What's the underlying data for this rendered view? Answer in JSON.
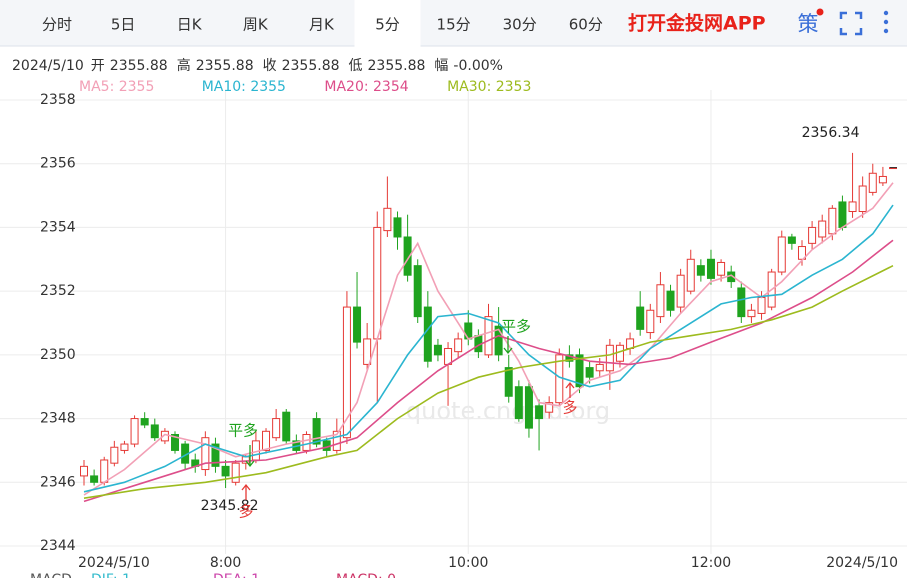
{
  "tabs": [
    "分时",
    "5日",
    "日K",
    "周K",
    "月K",
    "5分",
    "15分",
    "30分",
    "60分"
  ],
  "active_tab": 5,
  "brand": "打开金投网APP",
  "strategy_button": "策",
  "info": {
    "date": "2024/5/10",
    "items": [
      {
        "label": "开",
        "value": "2355.88"
      },
      {
        "label": "高",
        "value": "2355.88"
      },
      {
        "label": "收",
        "value": "2355.88"
      },
      {
        "label": "低",
        "value": "2355.88"
      },
      {
        "label": "幅",
        "value": "-0.00%"
      }
    ]
  },
  "macd_legend": [
    {
      "text": "MACD",
      "color": "#555555"
    },
    {
      "text": "DIF: 1",
      "color": "#33bbcc"
    },
    {
      "text": "DEA: 1",
      "color": "#cc44aa"
    },
    {
      "text": "MACD: 0",
      "color": "#cc3366"
    }
  ],
  "chart_data": {
    "type": "candlestick",
    "watermark": "quote.cngold.org",
    "categories": [
      "2024/5/10",
      null,
      null,
      null,
      null,
      null,
      null,
      null,
      null,
      null,
      null,
      null,
      null,
      null,
      "8:00",
      null,
      null,
      null,
      null,
      null,
      null,
      null,
      null,
      null,
      null,
      null,
      null,
      null,
      null,
      null,
      null,
      null,
      null,
      null,
      null,
      null,
      null,
      null,
      "10:00",
      null,
      null,
      null,
      null,
      null,
      null,
      null,
      null,
      null,
      null,
      null,
      null,
      null,
      null,
      null,
      null,
      null,
      null,
      null,
      null,
      null,
      null,
      null,
      "12:00",
      null,
      null,
      null,
      null,
      null,
      null,
      null,
      null,
      null,
      null,
      null,
      null,
      null,
      null,
      null,
      null,
      null,
      "2024/5/10"
    ],
    "open": [
      2346.2,
      2346.2,
      2346.0,
      2346.6,
      2347.0,
      2347.2,
      2348.0,
      2347.8,
      2347.3,
      2347.5,
      2347.2,
      2346.7,
      2346.4,
      2347.2,
      2346.5,
      2346.0,
      2346.6,
      2346.7,
      2347.0,
      2347.4,
      2348.2,
      2347.3,
      2347.0,
      2348.0,
      2347.3,
      2347.0,
      2347.4,
      2351.5,
      2349.7,
      2350.5,
      2353.9,
      2354.3,
      2353.7,
      2352.8,
      2351.5,
      2350.3,
      2349.7,
      2350.1,
      2351.0,
      2350.6,
      2350.0,
      2350.9,
      2349.6,
      2349.0,
      2349.0,
      2348.4,
      2348.2,
      2348.5,
      2350.0,
      2350.0,
      2349.6,
      2349.5,
      2349.5,
      2349.8,
      2350.2,
      2351.5,
      2350.7,
      2351.2,
      2352.0,
      2351.5,
      2352.0,
      2352.8,
      2353.0,
      2352.5,
      2352.6,
      2352.1,
      2351.2,
      2351.3,
      2351.5,
      2352.6,
      2353.7,
      2353.0,
      2353.5,
      2353.7,
      2353.8,
      2354.8,
      2354.5,
      2354.5,
      2355.1,
      2355.4,
      2355.88
    ],
    "high": [
      2346.7,
      2346.4,
      2346.8,
      2347.3,
      2347.3,
      2348.1,
      2348.2,
      2348.0,
      2347.7,
      2347.6,
      2347.3,
      2346.9,
      2347.6,
      2347.4,
      2346.7,
      2346.7,
      2346.9,
      2347.6,
      2347.7,
      2348.3,
      2348.3,
      2347.5,
      2347.6,
      2348.2,
      2347.4,
      2348.0,
      2352.0,
      2352.6,
      2351.0,
      2354.5,
      2355.6,
      2354.5,
      2354.4,
      2353.0,
      2352.0,
      2350.5,
      2350.4,
      2350.7,
      2351.4,
      2350.8,
      2351.6,
      2351.5,
      2350.0,
      2349.2,
      2349.2,
      2348.6,
      2348.7,
      2350.2,
      2350.3,
      2350.2,
      2349.8,
      2349.9,
      2350.5,
      2350.4,
      2350.7,
      2352.0,
      2351.6,
      2352.6,
      2352.2,
      2352.7,
      2353.3,
      2353.0,
      2353.3,
      2353.0,
      2352.8,
      2352.3,
      2351.6,
      2352.0,
      2352.7,
      2353.9,
      2353.8,
      2353.6,
      2354.2,
      2354.4,
      2354.7,
      2355.0,
      2356.34,
      2355.6,
      2356.0,
      2355.9,
      2355.88
    ],
    "low": [
      2345.9,
      2345.9,
      2345.9,
      2346.5,
      2346.9,
      2347.1,
      2347.7,
      2347.3,
      2347.2,
      2346.9,
      2346.4,
      2346.3,
      2346.2,
      2346.3,
      2345.82,
      2345.9,
      2346.4,
      2346.6,
      2346.9,
      2347.3,
      2347.2,
      2346.9,
      2346.9,
      2347.1,
      2346.8,
      2346.9,
      2347.2,
      2350.2,
      2349.5,
      2348.5,
      2353.7,
      2353.3,
      2352.3,
      2351.0,
      2349.6,
      2349.8,
      2348.4,
      2349.9,
      2350.3,
      2349.9,
      2349.9,
      2349.8,
      2348.5,
      2347.9,
      2347.4,
      2347.0,
      2348.0,
      2348.4,
      2349.6,
      2348.8,
      2349.1,
      2349.3,
      2348.9,
      2349.6,
      2350.0,
      2350.6,
      2350.5,
      2351.0,
      2351.2,
      2351.3,
      2351.9,
      2352.3,
      2352.2,
      2352.3,
      2352.1,
      2351.0,
      2351.0,
      2351.1,
      2351.4,
      2352.5,
      2353.3,
      2352.8,
      2353.3,
      2353.5,
      2353.6,
      2353.9,
      2354.3,
      2354.3,
      2355.0,
      2355.3,
      2355.88
    ],
    "close": [
      2346.5,
      2346.0,
      2346.7,
      2347.1,
      2347.2,
      2348.0,
      2347.8,
      2347.4,
      2347.6,
      2347.0,
      2346.6,
      2346.5,
      2347.4,
      2346.5,
      2346.2,
      2346.6,
      2346.8,
      2347.3,
      2347.6,
      2348.0,
      2347.3,
      2347.0,
      2347.5,
      2347.2,
      2347.0,
      2347.6,
      2351.5,
      2350.4,
      2350.5,
      2354.0,
      2354.6,
      2353.7,
      2352.5,
      2351.2,
      2349.8,
      2350.0,
      2350.2,
      2350.5,
      2350.5,
      2350.1,
      2351.2,
      2350.0,
      2348.7,
      2348.0,
      2347.7,
      2348.0,
      2348.5,
      2350.0,
      2349.8,
      2349.0,
      2349.3,
      2349.7,
      2350.3,
      2350.3,
      2350.5,
      2350.8,
      2351.4,
      2352.2,
      2351.4,
      2352.5,
      2353.0,
      2352.5,
      2352.4,
      2352.9,
      2352.3,
      2351.2,
      2351.4,
      2351.8,
      2352.6,
      2353.7,
      2353.5,
      2353.4,
      2354.0,
      2354.2,
      2354.6,
      2354.0,
      2354.8,
      2355.3,
      2355.7,
      2355.6,
      2355.88
    ],
    "up_color": "#e53935",
    "down_color": "#1fa31f",
    "series": [
      {
        "name": "MA5: 2355",
        "color": "#f2a0b6",
        "x": [
          0,
          4,
          8,
          12,
          15,
          20,
          25,
          27,
          29,
          31,
          33,
          35,
          38,
          41,
          43,
          45,
          47,
          50,
          53,
          56,
          59,
          62,
          64,
          67,
          69,
          72,
          75,
          78,
          80
        ],
        "values": [
          2345.6,
          2346.4,
          2347.5,
          2347.2,
          2346.8,
          2347.2,
          2347.5,
          2348.5,
          2350.5,
          2352.5,
          2353.5,
          2352.0,
          2350.5,
          2350.8,
          2349.8,
          2348.5,
          2348.4,
          2349.2,
          2349.5,
          2350.2,
          2351.3,
          2352.3,
          2352.5,
          2351.8,
          2352.3,
          2353.3,
          2354.0,
          2354.6,
          2355.4
        ]
      },
      {
        "name": "MA10: 2355",
        "color": "#2bb5d0",
        "x": [
          0,
          4,
          8,
          12,
          16,
          22,
          26,
          29,
          32,
          35,
          38,
          41,
          44,
          47,
          50,
          53,
          56,
          59,
          63,
          66,
          69,
          72,
          75,
          78,
          80
        ],
        "values": [
          2345.7,
          2346.0,
          2346.5,
          2347.2,
          2346.8,
          2347.2,
          2347.5,
          2348.5,
          2350.0,
          2351.2,
          2351.3,
          2351.0,
          2350.0,
          2349.3,
          2349.0,
          2349.2,
          2350.2,
          2350.8,
          2351.6,
          2351.8,
          2351.9,
          2352.5,
          2353.0,
          2353.8,
          2354.7
        ]
      },
      {
        "name": "MA20: 2354",
        "color": "#dd4e8a",
        "x": [
          0,
          6,
          12,
          18,
          24,
          27,
          31,
          35,
          39,
          41,
          45,
          50,
          54,
          58,
          62,
          67,
          72,
          76,
          80
        ],
        "values": [
          2345.4,
          2346.0,
          2346.6,
          2346.7,
          2347.1,
          2347.4,
          2348.5,
          2349.5,
          2350.3,
          2350.6,
          2350.2,
          2349.8,
          2349.7,
          2349.9,
          2350.4,
          2351.0,
          2351.8,
          2352.6,
          2353.6
        ]
      },
      {
        "name": "MA30: 2353",
        "color": "#9dbb1e",
        "x": [
          0,
          6,
          12,
          18,
          24,
          27,
          31,
          35,
          39,
          43,
          47,
          52,
          56,
          60,
          64,
          68,
          72,
          75,
          80
        ],
        "values": [
          2345.5,
          2345.8,
          2346.0,
          2346.3,
          2346.8,
          2347.0,
          2348.0,
          2348.8,
          2349.3,
          2349.6,
          2349.8,
          2350.0,
          2350.4,
          2350.6,
          2350.8,
          2351.1,
          2351.5,
          2352.0,
          2352.8
        ]
      }
    ],
    "ylim": [
      2344,
      2358
    ],
    "yticks": [
      2344,
      2346,
      2348,
      2350,
      2352,
      2354,
      2356,
      2358
    ],
    "grid": true,
    "min_label": 2345.82,
    "max_label": 2356.34,
    "annotations": [
      "平多",
      "多",
      "平多",
      "多"
    ]
  }
}
